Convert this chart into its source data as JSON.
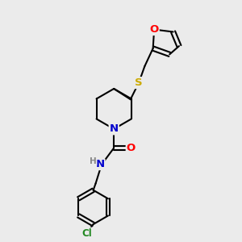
{
  "bg_color": "#ebebeb",
  "bond_color": "#000000",
  "bond_width": 1.5,
  "atom_colors": {
    "O": "#ff0000",
    "N": "#0000cd",
    "S": "#ccaa00",
    "Cl": "#228822",
    "H": "#888888",
    "C": "#000000"
  },
  "font_size": 8.5,
  "fig_size": [
    3.0,
    3.0
  ],
  "dpi": 100
}
